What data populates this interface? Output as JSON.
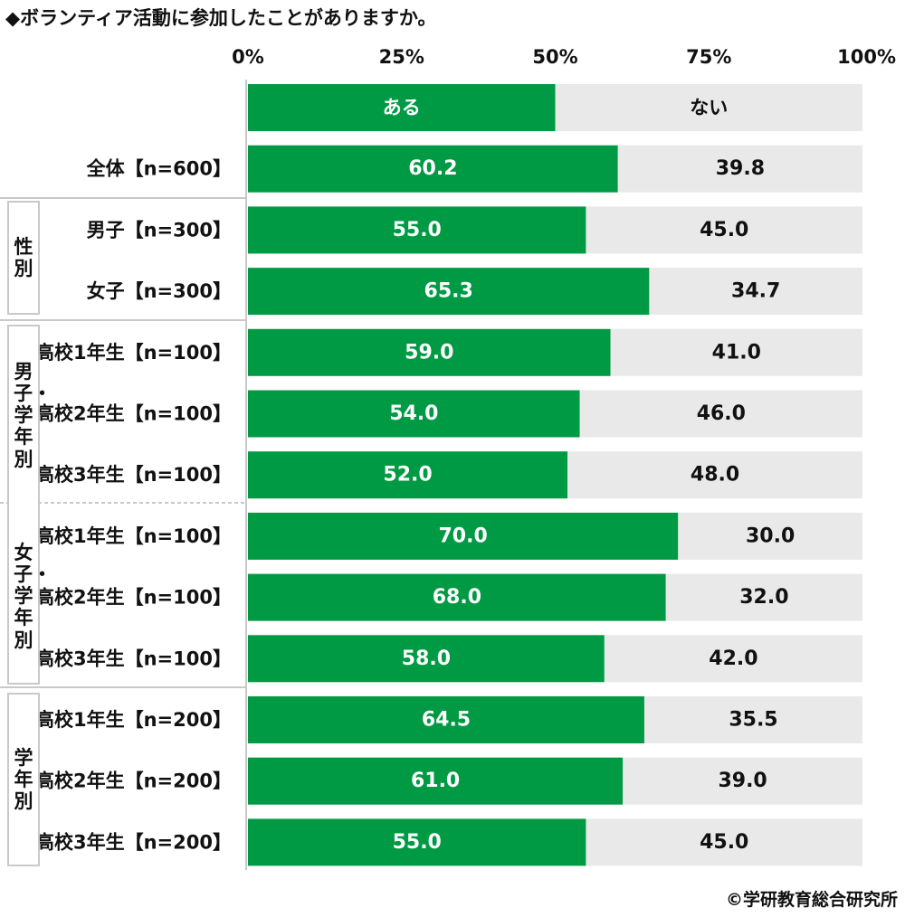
{
  "title": "◆ボランティア活動に参加したことがありますか。",
  "credit": "©学研教育総合研究所",
  "colors": {
    "yes": "#009a44",
    "no": "#e9e9e9",
    "separator": "#c9c9c9"
  },
  "chart_data": {
    "type": "bar",
    "orientation": "horizontal",
    "stacked": true,
    "percent": true,
    "xlim": [
      0,
      100
    ],
    "xticks": [
      "0%",
      "25%",
      "50%",
      "75%",
      "100%"
    ],
    "legend": [
      "ある",
      "ない"
    ],
    "categories": [
      "全体【n=600】",
      "男子【n=300】",
      "女子【n=300】",
      "高校1年生【n=100】",
      "高校2年生【n=100】",
      "高校3年生【n=100】",
      "高校1年生【n=100】",
      "高校2年生【n=100】",
      "高校3年生【n=100】",
      "高校1年生【n=200】",
      "高校2年生【n=200】",
      "高校3年生【n=200】"
    ],
    "series": [
      {
        "name": "ある",
        "values": [
          60.2,
          55.0,
          65.3,
          59.0,
          54.0,
          52.0,
          70.0,
          68.0,
          58.0,
          64.5,
          61.0,
          55.0
        ],
        "labels": [
          "60.2",
          "55.0",
          "65.3",
          "59.0",
          "54.0",
          "52.0",
          "70.0",
          "68.0",
          "58.0",
          "64.5",
          "61.0",
          "55.0"
        ]
      },
      {
        "name": "ない",
        "values": [
          39.8,
          45.0,
          34.7,
          41.0,
          46.0,
          48.0,
          30.0,
          32.0,
          42.0,
          35.5,
          39.0,
          45.0
        ],
        "labels": [
          "39.8",
          "45.0",
          "34.7",
          "41.0",
          "46.0",
          "48.0",
          "30.0",
          "32.0",
          "42.0",
          "35.5",
          "39.0",
          "45.0"
        ]
      }
    ],
    "groups": [
      {
        "label": "性別"
      },
      {
        "label": "男子・学年別"
      },
      {
        "label": "女子・学年別"
      },
      {
        "label": "学年別"
      }
    ]
  }
}
